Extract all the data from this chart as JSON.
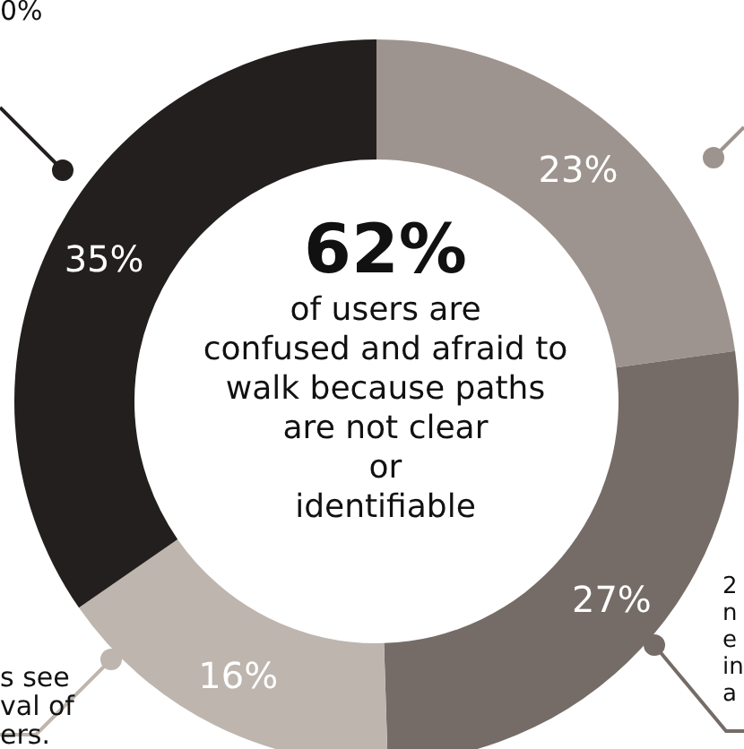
{
  "chart_data": {
    "type": "donut",
    "title": "62%",
    "subtitle": "of users are\nconfused and afraid to\nwalk because paths\nare not clear\nor\nidentifiable",
    "categories": [
      null,
      null,
      null,
      null
    ],
    "values": [
      23,
      27,
      16,
      35
    ],
    "colors": [
      "#9e948f",
      "#756c67",
      "#bdb5ae",
      "#231f1e"
    ],
    "value_labels": [
      "23%",
      "27%",
      "16%",
      "35%"
    ],
    "annotations": [
      "0%",
      "s see\nval of\ners.",
      "2\nn\ne\nin\na"
    ]
  }
}
